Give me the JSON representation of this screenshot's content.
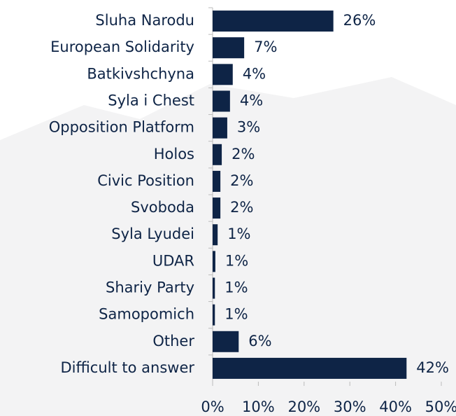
{
  "chart_data": {
    "type": "bar",
    "orientation": "horizontal",
    "categories": [
      "Sluha Narodu",
      "European Solidarity",
      "Batkivshchyna",
      "Syla i Chest",
      "Opposition Platform",
      "Holos",
      "Civic Position",
      "Svoboda",
      "Syla Lyudei",
      "UDAR",
      "Shariy Party",
      "Samopomich",
      "Other",
      "Difficult to answer"
    ],
    "values": [
      26.4,
      6.9,
      4.4,
      3.8,
      3.2,
      2.0,
      1.7,
      1.7,
      1.1,
      0.6,
      0.5,
      0.5,
      5.7,
      42.4
    ],
    "value_labels": [
      "26%",
      "7%",
      "4%",
      "4%",
      "3%",
      "2%",
      "2%",
      "2%",
      "1%",
      "1%",
      "1%",
      "1%",
      "6%",
      "42%"
    ],
    "color": "#0e2446",
    "xlim": [
      0,
      50
    ],
    "xticks": [
      {
        "value": 0,
        "label": "0%"
      },
      {
        "value": 10,
        "label": "10%"
      },
      {
        "value": 20,
        "label": "20%"
      },
      {
        "value": 30,
        "label": "30%"
      },
      {
        "value": 40,
        "label": "40%"
      },
      {
        "value": 50,
        "label": "50%"
      }
    ]
  }
}
